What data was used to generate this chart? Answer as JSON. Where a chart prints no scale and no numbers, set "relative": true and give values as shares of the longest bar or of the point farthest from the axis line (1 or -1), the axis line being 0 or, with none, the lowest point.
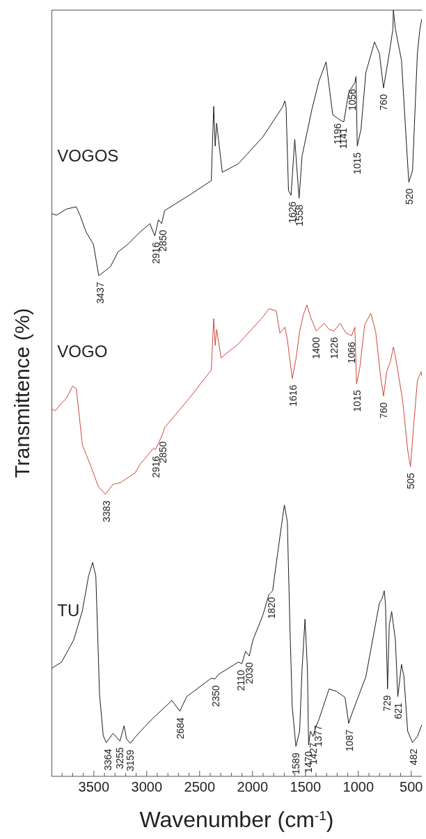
{
  "chart_data": {
    "type": "line",
    "xlabel": "Wavenumber (cm$^{-1}$)",
    "ylabel": "Transmittence (%)",
    "relative": true,
    "xlim": [
      3900,
      400
    ],
    "xticks": [
      {
        "value": 3800,
        "label": null
      },
      {
        "value": 3700,
        "label": null
      },
      {
        "value": 3600,
        "label": null
      },
      3500,
      {
        "value": 3400,
        "label": null
      },
      {
        "value": 3300,
        "label": null
      },
      {
        "value": 3200,
        "label": null
      },
      {
        "value": 3100,
        "label": null
      },
      3000,
      {
        "value": 2900,
        "label": null
      },
      {
        "value": 2800,
        "label": null
      },
      {
        "value": 2700,
        "label": null
      },
      {
        "value": 2600,
        "label": null
      },
      2500,
      {
        "value": 2400,
        "label": null
      },
      {
        "value": 2300,
        "label": null
      },
      {
        "value": 2200,
        "label": null
      },
      {
        "value": 2100,
        "label": null
      },
      2000,
      {
        "value": 1900,
        "label": null
      },
      {
        "value": 1800,
        "label": null
      },
      {
        "value": 1700,
        "label": null
      },
      {
        "value": 1600,
        "label": null
      },
      1500,
      {
        "value": 1400,
        "label": null
      },
      {
        "value": 1300,
        "label": null
      },
      {
        "value": 1200,
        "label": null
      },
      {
        "value": 1100,
        "label": null
      },
      1000,
      {
        "value": 900,
        "label": null
      },
      {
        "value": 800,
        "label": null
      },
      {
        "value": 700,
        "label": null
      },
      {
        "value": 600,
        "label": null
      },
      500
    ],
    "series": [
      {
        "name": "VOGOS",
        "color": "#1a1a1a",
        "x": [
          3898,
          3852,
          3759,
          3666,
          3631,
          3573,
          3504,
          3453,
          3388,
          3342,
          3272,
          3179,
          3063,
          2970,
          2924,
          2889,
          2859,
          2831,
          2599,
          2390,
          2367,
          2353,
          2339,
          2286,
          2135,
          1903,
          1717,
          1694,
          1683,
          1660,
          1636,
          1601,
          1567,
          1560,
          1532,
          1439,
          1370,
          1305,
          1242,
          1161,
          1137,
          1091,
          1033,
          1022,
          1010,
          975,
          929,
          847,
          801,
          762,
          708,
          673,
          669,
          650,
          592,
          558,
          523,
          488,
          442,
          418,
          400
        ],
        "values": [
          0.734,
          0.732,
          0.74,
          0.743,
          0.732,
          0.71,
          0.694,
          0.653,
          0.66,
          0.665,
          0.684,
          0.694,
          0.71,
          0.721,
          0.705,
          0.726,
          0.721,
          0.738,
          0.758,
          0.777,
          0.874,
          0.822,
          0.852,
          0.788,
          0.799,
          0.834,
          0.873,
          0.881,
          0.873,
          0.764,
          0.758,
          0.831,
          0.767,
          0.754,
          0.809,
          0.87,
          0.908,
          0.932,
          0.863,
          0.855,
          0.854,
          0.892,
          0.905,
          0.913,
          0.822,
          0.844,
          0.918,
          0.958,
          0.943,
          0.898,
          0.943,
          0.975,
          1,
          0.975,
          0.934,
          0.854,
          0.775,
          0.79,
          0.943,
          0.975,
          0.988
        ]
      },
      {
        "name": "VOGO",
        "color": "#d0453b",
        "x": [
          3898,
          3863,
          3805,
          3759,
          3701,
          3666,
          3643,
          3608,
          3573,
          3527,
          3457,
          3392,
          3318,
          3249,
          3109,
          3063,
          2936,
          2919,
          2854,
          2831,
          2599,
          2390,
          2367,
          2353,
          2339,
          2297,
          2135,
          1903,
          1845,
          1775,
          1741,
          1694,
          1671,
          1625,
          1590,
          1555,
          1520,
          1486,
          1451,
          1398,
          1323,
          1277,
          1230,
          1172,
          1115,
          1063,
          1033,
          1017,
          987,
          940,
          882,
          836,
          790,
          762,
          732,
          697,
          669,
          650,
          581,
          534,
          507,
          477,
          442,
          407,
          400
        ],
        "values": [
          0.479,
          0.477,
          0.487,
          0.493,
          0.509,
          0.506,
          0.477,
          0.432,
          0.42,
          0.404,
          0.378,
          0.368,
          0.381,
          0.383,
          0.396,
          0.407,
          0.428,
          0.426,
          0.445,
          0.455,
          0.493,
          0.53,
          0.597,
          0.562,
          0.583,
          0.546,
          0.564,
          0.599,
          0.61,
          0.607,
          0.578,
          0.586,
          0.57,
          0.519,
          0.544,
          0.58,
          0.602,
          0.615,
          0.599,
          0.581,
          0.591,
          0.583,
          0.581,
          0.591,
          0.578,
          0.575,
          0.586,
          0.512,
          0.532,
          0.589,
          0.604,
          0.58,
          0.522,
          0.496,
          0.528,
          0.541,
          0.56,
          0.548,
          0.49,
          0.426,
          0.404,
          0.458,
          0.516,
          0.528,
          0.522
        ]
      },
      {
        "name": "TU",
        "color": "#1a1a1a",
        "x": [
          3898,
          3805,
          3690,
          3608,
          3550,
          3511,
          3481,
          3446,
          3411,
          3383,
          3318,
          3253,
          3214,
          3191,
          3156,
          3110,
          3017,
          2947,
          2762,
          2687,
          2622,
          2390,
          2356,
          2321,
          2135,
          2100,
          2066,
          2031,
          1996,
          1903,
          1845,
          1810,
          1764,
          1699,
          1671,
          1648,
          1625,
          1590,
          1555,
          1532,
          1504,
          1481,
          1470,
          1452,
          1428,
          1405,
          1370,
          1277,
          1208,
          1126,
          1091,
          1068,
          929,
          801,
          778,
          755,
          743,
          724,
          708,
          685,
          650,
          627,
          616,
          592,
          569,
          534,
          488,
          442,
          400
        ],
        "values": [
          0.141,
          0.149,
          0.178,
          0.216,
          0.261,
          0.279,
          0.261,
          0.107,
          0.053,
          0.044,
          0.056,
          0.046,
          0.066,
          0.049,
          0.043,
          0.051,
          0.065,
          0.075,
          0.099,
          0.085,
          0.104,
          0.128,
          0.127,
          0.133,
          0.149,
          0.147,
          0.163,
          0.157,
          0.178,
          0.21,
          0.237,
          0.242,
          0.29,
          0.354,
          0.332,
          0.203,
          0.091,
          0.039,
          0.059,
          0.139,
          0.205,
          0.139,
          0.041,
          0.059,
          0.052,
          0.063,
          0.075,
          0.114,
          0.111,
          0.103,
          0.069,
          0.079,
          0.13,
          0.226,
          0.231,
          0.242,
          0.223,
          0.114,
          0.197,
          0.215,
          0.178,
          0.104,
          0.117,
          0.146,
          0.13,
          0.059,
          0.044,
          0.052,
          0.067
        ]
      }
    ],
    "annotations": [
      {
        "text": "3437",
        "x": 3437,
        "y": 0.653
      },
      {
        "text": "2916",
        "x": 2916,
        "y": 0.705
      },
      {
        "text": "2850",
        "x": 2850,
        "y": 0.721
      },
      {
        "text": "1626",
        "x": 1626,
        "y": 0.758
      },
      {
        "text": "1558",
        "x": 1558,
        "y": 0.754
      },
      {
        "text": "1196",
        "x": 1196,
        "y": 0.86
      },
      {
        "text": "1141",
        "x": 1141,
        "y": 0.854
      },
      {
        "text": "1056",
        "x": 1056,
        "y": 0.905
      },
      {
        "text": "1015",
        "x": 1015,
        "y": 0.822
      },
      {
        "text": "760",
        "x": 760,
        "y": 0.898
      },
      {
        "text": "520",
        "x": 520,
        "y": 0.775
      },
      {
        "text": "3383",
        "x": 3383,
        "y": 0.368
      },
      {
        "text": "2916",
        "x": 2916,
        "y": 0.426
      },
      {
        "text": "2850",
        "x": 2850,
        "y": 0.445
      },
      {
        "text": "1616",
        "x": 1616,
        "y": 0.519
      },
      {
        "text": "1400",
        "x": 1400,
        "y": 0.581
      },
      {
        "text": "1226",
        "x": 1226,
        "y": 0.581
      },
      {
        "text": "1066",
        "x": 1066,
        "y": 0.575
      },
      {
        "text": "1015",
        "x": 1015,
        "y": 0.512
      },
      {
        "text": "760",
        "x": 760,
        "y": 0.496
      },
      {
        "text": "505",
        "x": 505,
        "y": 0.404
      },
      {
        "text": "3364",
        "x": 3364,
        "y": 0.044
      },
      {
        "text": "3255",
        "x": 3255,
        "y": 0.046
      },
      {
        "text": "3159",
        "x": 3159,
        "y": 0.043
      },
      {
        "text": "2684",
        "x": 2684,
        "y": 0.085
      },
      {
        "text": "2350",
        "x": 2350,
        "y": 0.127
      },
      {
        "text": "2110",
        "x": 2110,
        "y": 0.147
      },
      {
        "text": "2030",
        "x": 2030,
        "y": 0.157
      },
      {
        "text": "1820",
        "x": 1820,
        "y": 0.242
      },
      {
        "text": "1589",
        "x": 1589,
        "y": 0.039
      },
      {
        "text": "1470",
        "x": 1470,
        "y": 0.041
      },
      {
        "text": "1427",
        "x": 1427,
        "y": 0.052
      },
      {
        "text": "1377",
        "x": 1377,
        "y": 0.075
      },
      {
        "text": "1087",
        "x": 1087,
        "y": 0.069
      },
      {
        "text": "729",
        "x": 729,
        "y": 0.114
      },
      {
        "text": "621",
        "x": 621,
        "y": 0.104
      },
      {
        "text": "482",
        "x": 482,
        "y": 0.044
      }
    ]
  }
}
